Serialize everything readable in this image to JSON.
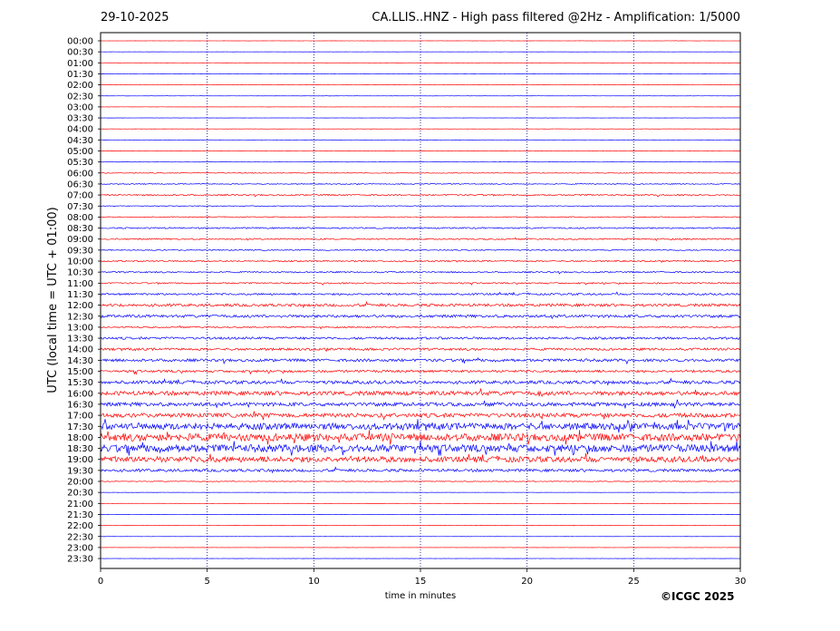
{
  "header": {
    "date": "29-10-2025",
    "title": "CA.LLIS..HNZ - High pass filtered @2Hz - Amplification: 1/5000"
  },
  "copyright": "©ICGC 2025",
  "colors": {
    "trace_a": "#ff0000",
    "trace_b": "#0000ff",
    "grid": "#000080",
    "axis": "#000000"
  },
  "chart_data": {
    "type": "line",
    "title": "CA.LLIS..HNZ - High pass filtered @2Hz - Amplification: 1/5000",
    "subtitle": "29-10-2025",
    "xlabel": "time in minutes",
    "ylabel": "UTC (local time = UTC + 01:00)",
    "xlim": [
      0,
      30
    ],
    "x_ticks": [
      "0",
      "5",
      "10",
      "15",
      "20",
      "25",
      "30"
    ],
    "x_tick_values": [
      0,
      5,
      10,
      15,
      20,
      25,
      30
    ],
    "vertical_grid_minutes": [
      5,
      10,
      15,
      20,
      25
    ],
    "grid": "dotted vertical",
    "rows": [
      {
        "label": "00:00",
        "color": "red",
        "activity": 0.02
      },
      {
        "label": "00:30",
        "color": "blue",
        "activity": 0.02
      },
      {
        "label": "01:00",
        "color": "red",
        "activity": 0.02
      },
      {
        "label": "01:30",
        "color": "blue",
        "activity": 0.02
      },
      {
        "label": "02:00",
        "color": "red",
        "activity": 0.02
      },
      {
        "label": "02:30",
        "color": "blue",
        "activity": 0.02
      },
      {
        "label": "03:00",
        "color": "red",
        "activity": 0.02
      },
      {
        "label": "03:30",
        "color": "blue",
        "activity": 0.02
      },
      {
        "label": "04:00",
        "color": "red",
        "activity": 0.03
      },
      {
        "label": "04:30",
        "color": "blue",
        "activity": 0.03
      },
      {
        "label": "05:00",
        "color": "red",
        "activity": 0.03
      },
      {
        "label": "05:30",
        "color": "blue",
        "activity": 0.03
      },
      {
        "label": "06:00",
        "color": "red",
        "activity": 0.08
      },
      {
        "label": "06:30",
        "color": "blue",
        "activity": 0.1
      },
      {
        "label": "07:00",
        "color": "red",
        "activity": 0.15
      },
      {
        "label": "07:30",
        "color": "blue",
        "activity": 0.08
      },
      {
        "label": "08:00",
        "color": "red",
        "activity": 0.1
      },
      {
        "label": "08:30",
        "color": "blue",
        "activity": 0.15
      },
      {
        "label": "09:00",
        "color": "red",
        "activity": 0.15
      },
      {
        "label": "09:30",
        "color": "blue",
        "activity": 0.12
      },
      {
        "label": "10:00",
        "color": "red",
        "activity": 0.15
      },
      {
        "label": "10:30",
        "color": "blue",
        "activity": 0.15
      },
      {
        "label": "11:00",
        "color": "red",
        "activity": 0.15
      },
      {
        "label": "11:30",
        "color": "blue",
        "activity": 0.2
      },
      {
        "label": "12:00",
        "color": "red",
        "activity": 0.3
      },
      {
        "label": "12:30",
        "color": "blue",
        "activity": 0.3
      },
      {
        "label": "13:00",
        "color": "red",
        "activity": 0.15
      },
      {
        "label": "13:30",
        "color": "blue",
        "activity": 0.25
      },
      {
        "label": "14:00",
        "color": "red",
        "activity": 0.25
      },
      {
        "label": "14:30",
        "color": "blue",
        "activity": 0.3
      },
      {
        "label": "15:00",
        "color": "red",
        "activity": 0.25
      },
      {
        "label": "15:30",
        "color": "blue",
        "activity": 0.35
      },
      {
        "label": "16:00",
        "color": "red",
        "activity": 0.45
      },
      {
        "label": "16:30",
        "color": "blue",
        "activity": 0.4
      },
      {
        "label": "17:00",
        "color": "red",
        "activity": 0.45
      },
      {
        "label": "17:30",
        "color": "blue",
        "activity": 0.7
      },
      {
        "label": "18:00",
        "color": "red",
        "activity": 0.8
      },
      {
        "label": "18:30",
        "color": "blue",
        "activity": 0.8
      },
      {
        "label": "19:00",
        "color": "red",
        "activity": 0.6
      },
      {
        "label": "19:30",
        "color": "blue",
        "activity": 0.3
      },
      {
        "label": "20:00",
        "color": "red",
        "activity": 0.08
      },
      {
        "label": "20:30",
        "color": "blue",
        "activity": 0.02
      },
      {
        "label": "21:00",
        "color": "red",
        "activity": 0.02
      },
      {
        "label": "21:30",
        "color": "blue",
        "activity": 0.02
      },
      {
        "label": "22:00",
        "color": "red",
        "activity": 0.02
      },
      {
        "label": "22:30",
        "color": "blue",
        "activity": 0.02
      },
      {
        "label": "23:00",
        "color": "red",
        "activity": 0.02
      },
      {
        "label": "23:30",
        "color": "blue",
        "activity": 0.02
      }
    ]
  }
}
